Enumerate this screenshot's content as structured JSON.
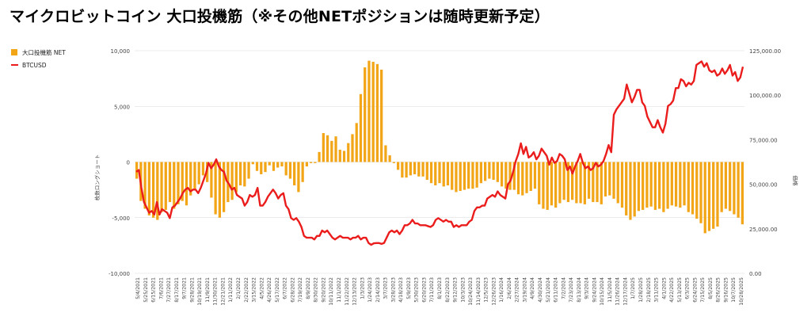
{
  "title": "マイクロビットコイン 大口投機筋（※その他NETポジションは随時更新予定）",
  "colors": {
    "bar": "#f2a516",
    "line": "#ea1c1c",
    "grid": "#d9d9d9",
    "text": "#444444"
  },
  "chart_data": {
    "type": "bar+line",
    "ylabel_left": "枚数ロングショート",
    "ylabel_right": "価格",
    "ylim_left": [
      -10000,
      10000
    ],
    "ylim_right": [
      0,
      125000
    ],
    "yticks_left": [
      "10,000",
      "5,000",
      "0",
      "-5,000",
      "-10,000"
    ],
    "yticks_right": [
      "125,000.00",
      "100,000.00",
      "75,000.00",
      "50,000.00",
      "25,000.00",
      "0.00"
    ],
    "x_labels": [
      "5/4/2021",
      "5/25/2021",
      "6/15/2021",
      "7/6/2021",
      "7/27/2021",
      "8/17/2021",
      "9/7/2021",
      "9/28/2021",
      "10/19/2021",
      "11/9/2021",
      "11/30/2021",
      "12/21/2021",
      "1/11/2022",
      "2/1/2022",
      "2/22/2022",
      "3/15/2022",
      "4/5/2022",
      "4/26/2022",
      "5/17/2022",
      "6/7/2022",
      "6/28/2022",
      "7/19/2022",
      "8/9/2022",
      "8/30/2022",
      "9/20/2022",
      "10/11/2022",
      "11/1/2022",
      "11/22/2022",
      "12/13/2022",
      "1/3/2023",
      "1/24/2023",
      "2/14/2023",
      "3/7/2023",
      "3/28/2023",
      "4/18/2023",
      "5/9/2023",
      "5/30/2023",
      "6/20/2023",
      "7/11/2023",
      "8/1/2023",
      "8/22/2023",
      "9/12/2023",
      "10/3/2023",
      "10/24/2023",
      "11/14/2023",
      "12/5/2023",
      "12/26/2023",
      "1/16/2024",
      "2/6/2024",
      "2/27/2024",
      "3/19/2024",
      "4/9/2024",
      "4/30/2024",
      "5/21/2024",
      "6/11/2024",
      "7/2/2024",
      "7/23/2024",
      "8/13/2024",
      "9/3/2024",
      "9/24/2024",
      "10/15/2024",
      "11/5/2024",
      "11/26/2024",
      "12/17/2024",
      "1/7/2025",
      "1/28/2025",
      "2/18/2025",
      "3/11/2025",
      "4/1/2025",
      "4/22/2025",
      "5/13/2025",
      "6/3/2025",
      "6/24/2025",
      "7/15/2025",
      "8/5/2025",
      "8/26/2025",
      "9/16/2025",
      "10/7/2025",
      "10/28/2025"
    ],
    "series": [
      {
        "name": "大口投機筋  NET",
        "type": "bar",
        "axis": "left",
        "values": [
          -1500,
          -3500,
          -4200,
          -4800,
          -5000,
          -5200,
          -4500,
          -4300,
          -3600,
          -4200,
          -3800,
          -3500,
          -3900,
          -3000,
          -2400,
          -2000,
          -1200,
          -1800,
          -3200,
          -4700,
          -5000,
          -4500,
          -3600,
          -3400,
          -2700,
          -2100,
          -2200,
          -1500,
          -200,
          -800,
          -1100,
          -900,
          -300,
          -800,
          -500,
          -400,
          -1200,
          -1500,
          -2100,
          -2700,
          -1800,
          -400,
          -100,
          -100,
          900,
          2600,
          2400,
          1900,
          2300,
          1100,
          1000,
          1700,
          2500,
          3500,
          6100,
          8500,
          9100,
          9000,
          8800,
          8300,
          1500,
          600,
          -100,
          -700,
          -1400,
          -1400,
          -1200,
          -1100,
          -1300,
          -1300,
          -1600,
          -1900,
          -2100,
          -1900,
          -2200,
          -2100,
          -2500,
          -2700,
          -2600,
          -2500,
          -2400,
          -2400,
          -2300,
          -1900,
          -1700,
          -1500,
          -1600,
          -1800,
          -2200,
          -2400,
          -2500,
          -2500,
          -2900,
          -3000,
          -2800,
          -2600,
          -2400,
          -3800,
          -4200,
          -4300,
          -3900,
          -4100,
          -3700,
          -3400,
          -3600,
          -3400,
          -3700,
          -3700,
          -3800,
          -3300,
          -3600,
          -3600,
          -3800,
          -3100,
          -3000,
          -3300,
          -3700,
          -4100,
          -4800,
          -5200,
          -4900,
          -4400,
          -4300,
          -4100,
          -4000,
          -4300,
          -4200,
          -4500,
          -4200,
          -3900,
          -4000,
          -4100,
          -3900,
          -4500,
          -4700,
          -5100,
          -5500,
          -6400,
          -6200,
          -6000,
          -5800,
          -4500,
          -4200,
          -4400,
          -4700,
          -5000,
          -5600
        ]
      },
      {
        "name": "BTCUSD",
        "type": "line",
        "axis": "right",
        "values": [
          57000,
          58000,
          48000,
          40000,
          37000,
          34000,
          35000,
          33000,
          40000,
          33000,
          36000,
          35000,
          34000,
          31000,
          37000,
          38000,
          40000,
          42000,
          45000,
          47000,
          48000,
          46000,
          47000,
          47000,
          45000,
          48000,
          52000,
          56000,
          62000,
          59000,
          61000,
          64000,
          60000,
          58000,
          57000,
          52000,
          50000,
          47000,
          48000,
          44000,
          43000,
          42000,
          38000,
          40000,
          44000,
          43000,
          44000,
          48000,
          38000,
          38000,
          40000,
          43000,
          45000,
          47000,
          45000,
          42000,
          44000,
          45000,
          38000,
          36000,
          31000,
          30000,
          31000,
          29000,
          26000,
          21000,
          20000,
          20000,
          20000,
          19000,
          21000,
          21000,
          24000,
          23000,
          24000,
          22000,
          20000,
          19000,
          20000,
          21000,
          20000,
          20000,
          20000,
          19000,
          20000,
          20000,
          21000,
          19000,
          20000,
          20000,
          17000,
          16000,
          16800,
          17000,
          17000,
          16500,
          17000,
          20000,
          23000,
          24000,
          23000,
          24000,
          22000,
          24000,
          27000,
          27000,
          28000,
          30000,
          28000,
          28000,
          27000,
          27000,
          27000,
          26500,
          26000,
          27000,
          30000,
          31000,
          30000,
          29000,
          30000,
          29000,
          29000,
          26000,
          27000,
          26000,
          27000,
          27000,
          27000,
          29000,
          30000,
          35000,
          37000,
          37000,
          38000,
          38000,
          42000,
          43000,
          44000,
          43000,
          46000,
          44000,
          43000,
          42000,
          50000,
          52000,
          57000,
          63000,
          67000,
          73000,
          67000,
          71000,
          65000,
          66000,
          68000,
          64000,
          66000,
          70000,
          68000,
          66000,
          61000,
          65000,
          62000,
          63000,
          67000,
          66000,
          64000,
          58000,
          60000,
          56000,
          60000,
          63000,
          67000,
          62000,
          59000,
          60000,
          58000,
          59000,
          62000,
          60000,
          61000,
          63000,
          67000,
          72000,
          68000,
          89000,
          92000,
          94000,
          96000,
          98000,
          106000,
          101000,
          96000,
          99000,
          103000,
          103000,
          96000,
          94000,
          88000,
          85000,
          82000,
          82000,
          86000,
          82000,
          79000,
          84000,
          94000,
          95000,
          97000,
          104000,
          104000,
          109000,
          108000,
          105000,
          107000,
          106000,
          108000,
          117000,
          118000,
          119000,
          116000,
          118000,
          114000,
          113000,
          114000,
          111000,
          112000,
          115000,
          112000,
          114000,
          117000,
          111000,
          113000,
          108000,
          110000,
          116000
        ]
      }
    ]
  }
}
